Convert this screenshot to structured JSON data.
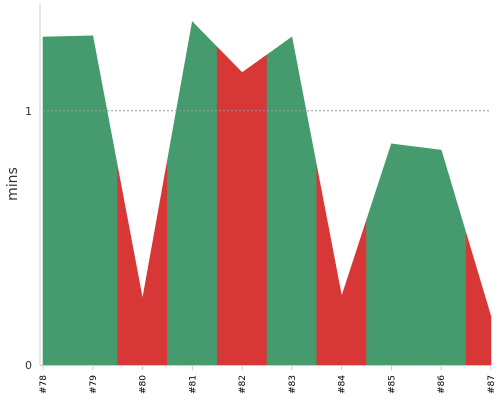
{
  "chart_data": {
    "type": "area",
    "ylabel": "mins",
    "yticks": [
      {
        "value": 0,
        "label": "0"
      },
      {
        "value": 1,
        "label": "1"
      }
    ],
    "ylim": [
      0,
      1.42
    ],
    "reference_line": {
      "value": 1,
      "style": "dotted"
    },
    "builds": [
      {
        "label": "#78",
        "value": 1.29,
        "status": "success"
      },
      {
        "label": "#79",
        "value": 1.295,
        "status": "success"
      },
      {
        "label": "#80",
        "value": 0.26,
        "status": "failure"
      },
      {
        "label": "#81",
        "value": 1.35,
        "status": "success"
      },
      {
        "label": "#82",
        "value": 1.15,
        "status": "failure"
      },
      {
        "label": "#83",
        "value": 1.29,
        "status": "success"
      },
      {
        "label": "#84",
        "value": 0.27,
        "status": "failure"
      },
      {
        "label": "#85",
        "value": 0.87,
        "status": "success"
      },
      {
        "label": "#86",
        "value": 0.845,
        "status": "success"
      },
      {
        "label": "#87",
        "value": 0.19,
        "status": "failure"
      }
    ],
    "colors": {
      "success": "#459b6d",
      "failure": "#d73737",
      "axis": "#cccccc",
      "reference_line": "#999999"
    }
  }
}
